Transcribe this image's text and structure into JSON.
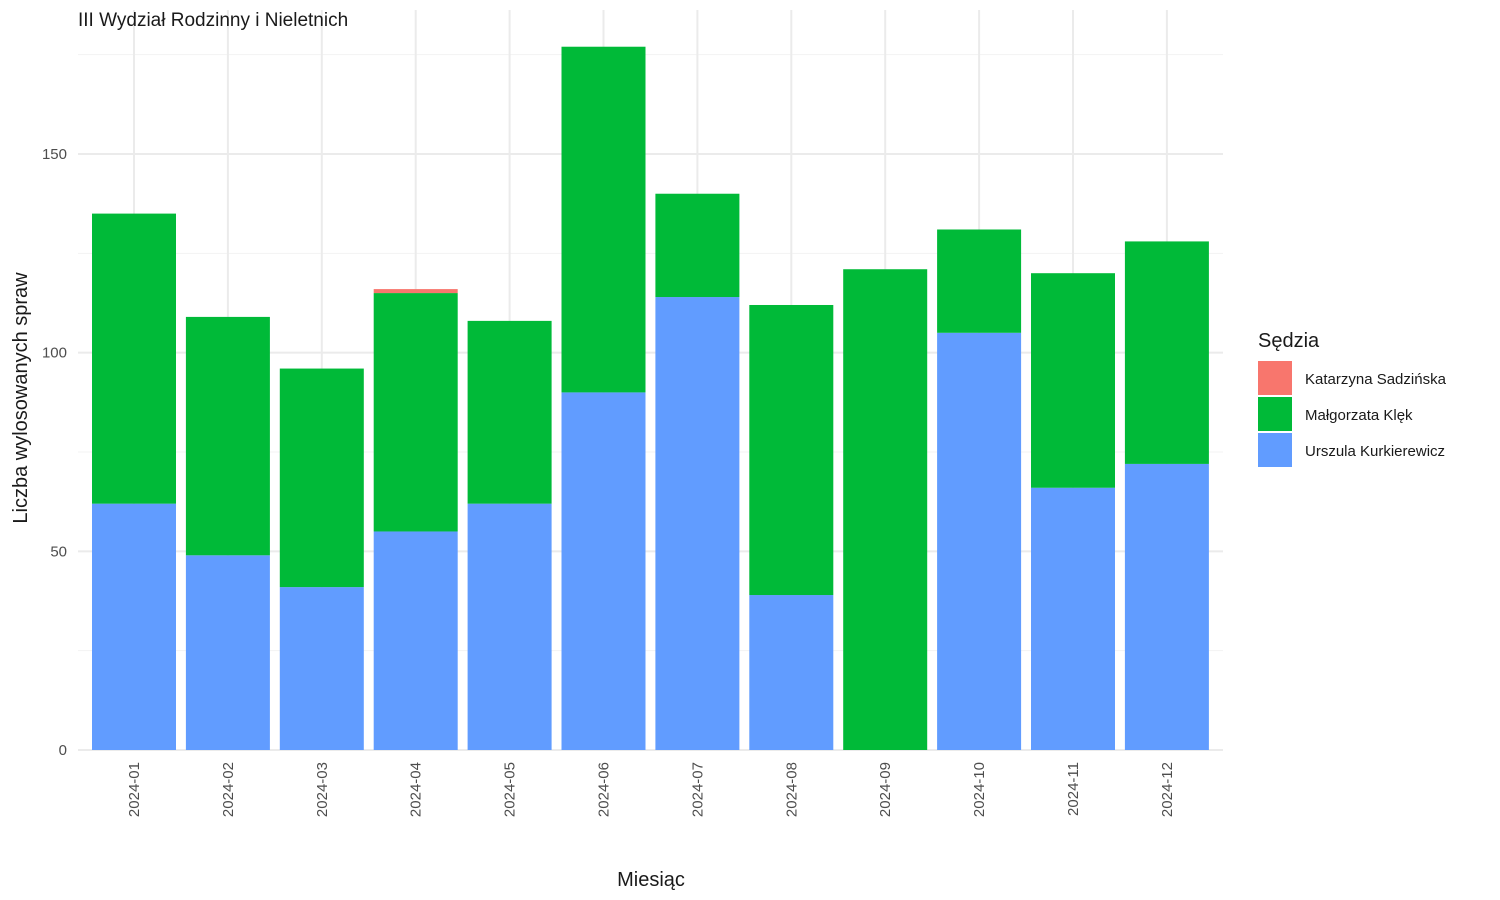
{
  "chart_data": {
    "type": "bar",
    "stacked": true,
    "title": "III Wydział Rodzinny i Nieletnich",
    "xlabel": "Miesiąc",
    "ylabel": "Liczba wylosowanych spraw",
    "categories": [
      "2024-01",
      "2024-02",
      "2024-03",
      "2024-04",
      "2024-05",
      "2024-06",
      "2024-07",
      "2024-08",
      "2024-09",
      "2024-10",
      "2024-11",
      "2024-12"
    ],
    "series": [
      {
        "name": "Urszula Kurkierewicz",
        "color": "#619CFF",
        "values": [
          62,
          49,
          41,
          55,
          62,
          90,
          114,
          39,
          0,
          105,
          66,
          72
        ]
      },
      {
        "name": "Małgorzata Klęk",
        "color": "#00BA38",
        "values": [
          73,
          60,
          55,
          60,
          46,
          87,
          26,
          73,
          121,
          26,
          54,
          56
        ]
      },
      {
        "name": "Katarzyna Sadzińska",
        "color": "#F8766D",
        "values": [
          0,
          0,
          0,
          1,
          0,
          0,
          0,
          0,
          0,
          0,
          0,
          0
        ]
      }
    ],
    "ylim": [
      0,
      180
    ],
    "yticks": [
      0,
      50,
      100,
      150
    ],
    "grid": true,
    "legend": {
      "title": "Sędzia",
      "placement": "right",
      "order": [
        "Katarzyna Sadzińska",
        "Małgorzata Klęk",
        "Urszula Kurkierewicz"
      ]
    }
  }
}
